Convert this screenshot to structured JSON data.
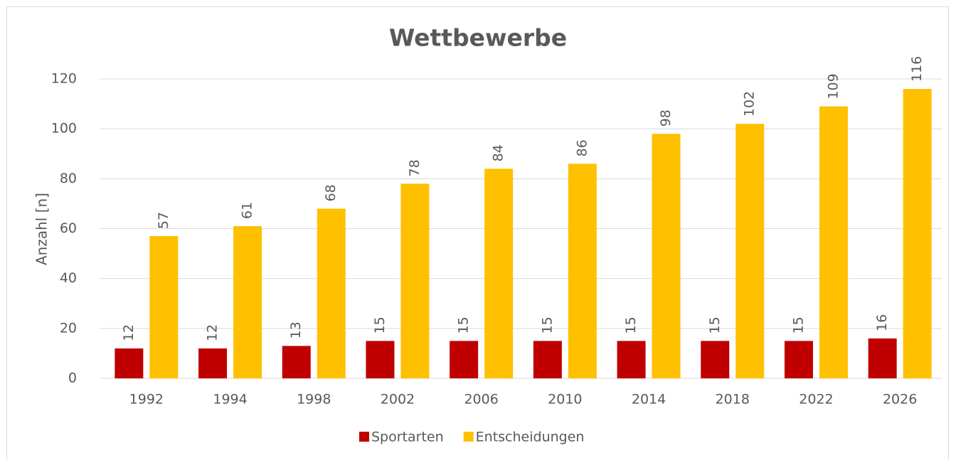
{
  "chart_data": {
    "type": "bar",
    "title": "Wettbewerbe",
    "y_label": "Anzahl [n]",
    "categories": [
      "1992",
      "1994",
      "1998",
      "2002",
      "2006",
      "2010",
      "2014",
      "2018",
      "2022",
      "2026"
    ],
    "series": [
      {
        "name": "Sportarten",
        "color": "#c00000",
        "values": [
          12,
          12,
          13,
          15,
          15,
          15,
          15,
          15,
          15,
          16
        ]
      },
      {
        "name": "Entscheidungen",
        "color": "#ffc000",
        "values": [
          57,
          61,
          68,
          78,
          84,
          86,
          98,
          102,
          109,
          116
        ]
      }
    ],
    "ylim": [
      0,
      120
    ],
    "yticks": [
      0,
      20,
      40,
      60,
      80,
      100,
      120
    ],
    "grid": true,
    "legend": "bottom"
  }
}
